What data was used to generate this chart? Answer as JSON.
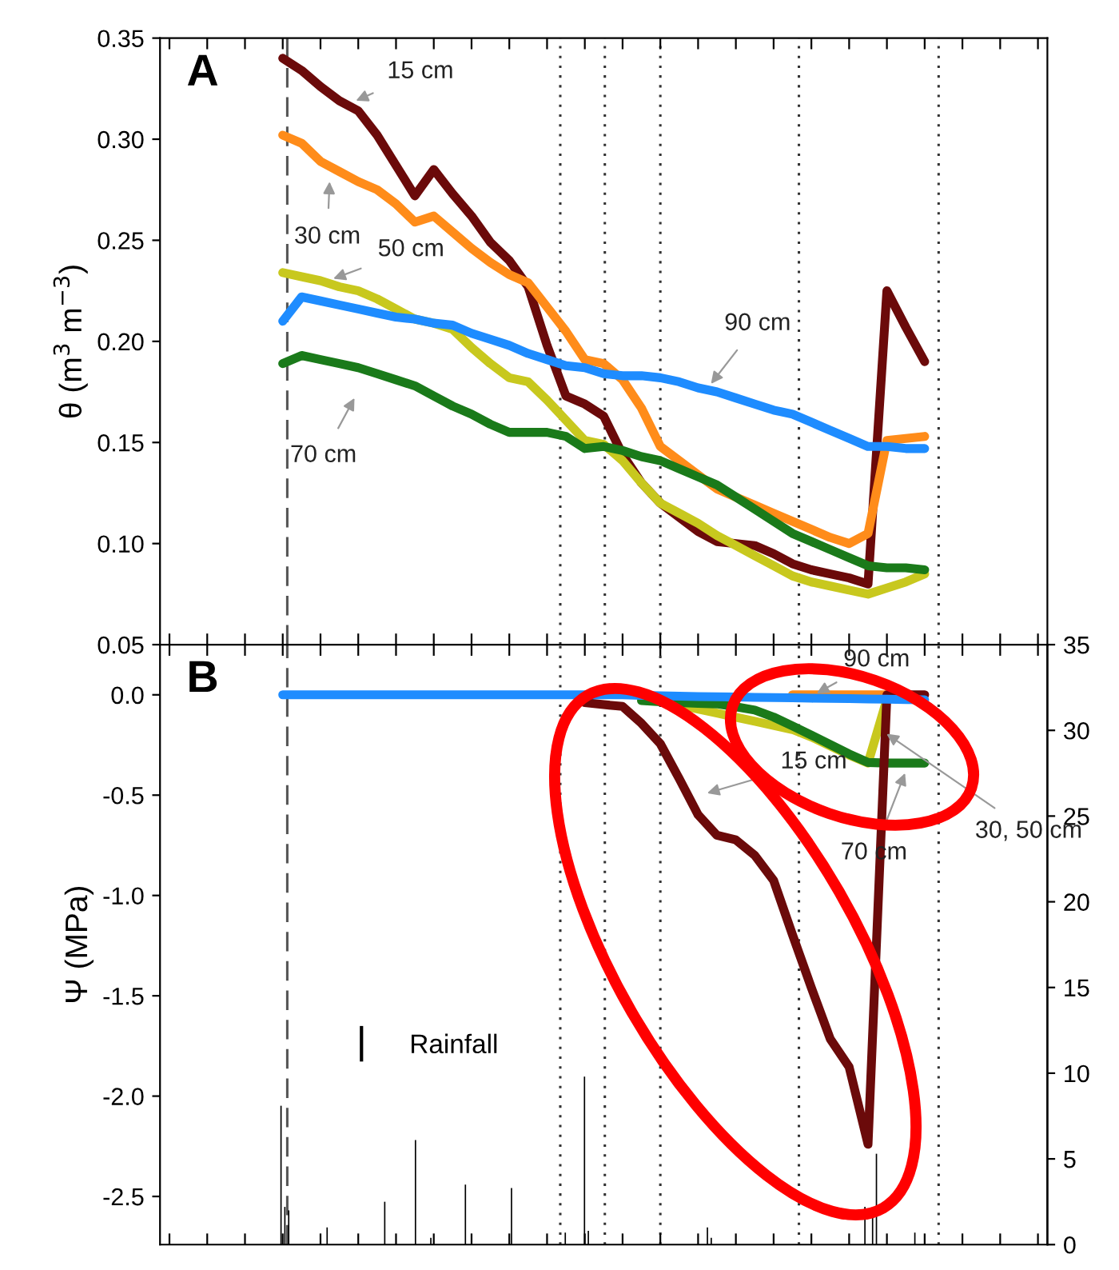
{
  "chart_data": [
    {
      "type": "line",
      "ylabel": "θ (m$^{3}$ m$^{−3}$)",
      "ylim": [
        0.05,
        0.35
      ],
      "tick_labels": "y",
      "marker": "none",
      "line_style": "solid",
      "categories": [
        null,
        null,
        null,
        null,
        null,
        null,
        null,
        null,
        null,
        null,
        null,
        null,
        null,
        null,
        null,
        null,
        null,
        null,
        null,
        null,
        null,
        null,
        null,
        null,
        null,
        null,
        null,
        null,
        null,
        null,
        null,
        null,
        null,
        null,
        null,
        null,
        null,
        null,
        null,
        null,
        null,
        null,
        null,
        null,
        null,
        null,
        null
      ],
      "yticks": [
        {
          "value": 0.05,
          "label": "0.05"
        },
        {
          "value": 0.1,
          "label": "0.10"
        },
        {
          "value": 0.15,
          "label": "0.15"
        },
        {
          "value": 0.2,
          "label": "0.20"
        },
        {
          "value": 0.25,
          "label": "0.25"
        },
        {
          "value": 0.3,
          "label": "0.30"
        },
        {
          "value": 0.35,
          "label": "0.35"
        }
      ],
      "series": [
        {
          "color": "#6b0a0a",
          "values": [
            null,
            null,
            null,
            null,
            null,
            null,
            0.34,
            0.334,
            0.326,
            0.319,
            0.314,
            0.302,
            0.287,
            0.272,
            0.285,
            0.273,
            0.262,
            0.249,
            0.24,
            0.227,
            0.198,
            0.173,
            0.169,
            0.163,
            0.144,
            0.13,
            0.12,
            0.113,
            0.106,
            0.101,
            0.1,
            0.099,
            0.095,
            0.09,
            0.087,
            0.085,
            0.083,
            0.08,
            0.225,
            0.207,
            0.19,
            null,
            null,
            null,
            null,
            null,
            null
          ]
        },
        {
          "color": "#ff8c1a",
          "values": [
            null,
            null,
            null,
            null,
            null,
            null,
            0.302,
            0.298,
            0.289,
            0.284,
            0.279,
            0.275,
            0.268,
            0.259,
            0.262,
            0.254,
            0.246,
            0.239,
            0.233,
            0.229,
            0.217,
            0.205,
            0.191,
            0.189,
            0.181,
            0.167,
            0.148,
            0.141,
            0.134,
            0.127,
            0.123,
            0.119,
            0.115,
            0.111,
            0.107,
            0.103,
            0.1,
            0.105,
            0.151,
            0.152,
            0.153,
            null,
            null,
            null,
            null,
            null,
            null
          ]
        },
        {
          "color": "#c8c81e",
          "values": [
            null,
            null,
            null,
            null,
            null,
            null,
            0.234,
            0.232,
            0.23,
            0.227,
            0.225,
            0.221,
            0.216,
            0.211,
            0.209,
            0.206,
            0.197,
            0.189,
            0.182,
            0.18,
            0.171,
            0.161,
            0.151,
            0.149,
            0.141,
            0.13,
            0.12,
            0.115,
            0.11,
            0.104,
            0.099,
            0.094,
            0.089,
            0.084,
            0.081,
            0.079,
            0.077,
            0.075,
            0.078,
            0.081,
            0.085,
            null,
            null,
            null,
            null,
            null,
            null
          ]
        },
        {
          "color": "#1a7a1a",
          "values": [
            null,
            null,
            null,
            null,
            null,
            null,
            0.189,
            0.193,
            0.191,
            0.189,
            0.187,
            0.184,
            0.181,
            0.178,
            0.173,
            0.168,
            0.164,
            0.159,
            0.155,
            0.155,
            0.155,
            0.153,
            0.147,
            0.148,
            0.146,
            0.143,
            0.141,
            0.137,
            0.133,
            0.129,
            0.123,
            0.117,
            0.111,
            0.105,
            0.101,
            0.097,
            0.093,
            0.089,
            0.088,
            0.088,
            0.087,
            null,
            null,
            null,
            null,
            null,
            null
          ]
        },
        {
          "color": "#1e8cff",
          "values": [
            null,
            null,
            null,
            null,
            null,
            null,
            0.21,
            0.222,
            0.22,
            0.218,
            0.216,
            0.214,
            0.212,
            0.211,
            0.209,
            0.208,
            0.204,
            0.201,
            0.198,
            0.194,
            0.191,
            0.188,
            0.187,
            0.184,
            0.183,
            0.183,
            0.182,
            0.18,
            0.177,
            0.175,
            0.172,
            0.169,
            0.166,
            0.164,
            0.16,
            0.156,
            0.152,
            0.148,
            0.148,
            0.147,
            0.147,
            null,
            null,
            null,
            null,
            null,
            null
          ]
        }
      ],
      "annotations": [
        "A",
        "15 cm",
        "30 cm",
        "50 cm",
        "70 cm",
        "90 cm"
      ]
    },
    {
      "type": "line",
      "ylabel": "Ψ (MPa)",
      "ylim": [
        -2.74,
        0.25
      ],
      "tick_labels": "y",
      "marker": "none",
      "line_style": "solid",
      "categories": [
        null,
        null,
        null,
        null,
        null,
        null,
        null,
        null,
        null,
        null,
        null,
        null,
        null,
        null,
        null,
        null,
        null,
        null,
        null,
        null,
        null,
        null,
        null,
        null,
        null,
        null,
        null,
        null,
        null,
        null,
        null,
        null,
        null,
        null,
        null,
        null,
        null,
        null,
        null,
        null,
        null,
        null,
        null,
        null,
        null,
        null,
        null
      ],
      "yticks": [
        {
          "value": -2.5,
          "label": "-2.5"
        },
        {
          "value": -2.0,
          "label": "-2.0"
        },
        {
          "value": -1.5,
          "label": "-1.5"
        },
        {
          "value": -1.0,
          "label": "-1.0"
        },
        {
          "value": -0.5,
          "label": "-0.5"
        },
        {
          "value": 0.0,
          "label": "0.0"
        }
      ],
      "series": [
        {
          "color": "#ff8c1a",
          "values": [
            null,
            null,
            null,
            null,
            null,
            null,
            null,
            null,
            null,
            null,
            null,
            null,
            null,
            null,
            null,
            null,
            null,
            null,
            null,
            null,
            null,
            null,
            null,
            null,
            null,
            null,
            null,
            null,
            null,
            null,
            null,
            null,
            null,
            0,
            0,
            0,
            0,
            0,
            0,
            null,
            null,
            null,
            null,
            null,
            null,
            null,
            null
          ]
        },
        {
          "color": "#c8c81e",
          "values": [
            null,
            null,
            null,
            null,
            null,
            null,
            null,
            null,
            null,
            null,
            null,
            null,
            null,
            null,
            null,
            null,
            null,
            null,
            null,
            null,
            null,
            null,
            null,
            null,
            null,
            null,
            -0.03,
            -0.05,
            -0.071,
            -0.091,
            -0.112,
            -0.132,
            -0.153,
            -0.173,
            -0.21,
            -0.255,
            -0.3,
            -0.34,
            -0.022,
            null,
            null,
            null,
            null,
            null,
            null,
            null,
            null
          ]
        },
        {
          "color": "#1a7a1a",
          "values": [
            null,
            null,
            null,
            null,
            null,
            null,
            null,
            null,
            null,
            null,
            null,
            null,
            null,
            null,
            null,
            null,
            null,
            null,
            null,
            null,
            null,
            null,
            null,
            null,
            null,
            -0.029,
            -0.035,
            -0.038,
            -0.042,
            -0.045,
            -0.06,
            -0.076,
            -0.111,
            -0.155,
            -0.201,
            -0.248,
            -0.295,
            -0.337,
            -0.34,
            -0.34,
            -0.34,
            null,
            null,
            null,
            null,
            null,
            null
          ]
        },
        {
          "color": "#6b0a0a",
          "values": [
            null,
            null,
            null,
            null,
            null,
            null,
            null,
            null,
            null,
            null,
            null,
            null,
            null,
            null,
            null,
            null,
            null,
            null,
            null,
            null,
            null,
            null,
            -0.039,
            -0.049,
            -0.058,
            -0.142,
            -0.244,
            -0.418,
            -0.598,
            -0.7,
            -0.723,
            -0.8,
            -0.925,
            -1.196,
            -1.46,
            -1.715,
            -1.855,
            -2.24,
            0,
            0,
            0,
            null,
            null,
            null,
            null,
            null,
            null
          ]
        },
        {
          "color": "#1e8cff",
          "values": [
            null,
            null,
            null,
            null,
            null,
            null,
            0,
            0,
            0,
            0,
            0,
            0,
            0,
            0,
            0,
            0,
            0,
            0,
            0,
            0,
            0,
            0,
            0,
            0,
            0,
            -0.003,
            -0.005,
            -0.007,
            -0.009,
            -0.01,
            -0.011,
            -0.013,
            -0.014,
            -0.015,
            -0.017,
            -0.018,
            -0.019,
            -0.021,
            -0.022,
            -0.024,
            -0.025,
            null,
            null,
            null,
            null,
            null,
            null
          ]
        }
      ],
      "annotations": [
        "B",
        "90 cm",
        "30, 50 cm",
        "70 cm",
        "15 cm"
      ]
    },
    {
      "type": "bar",
      "y2lim": [
        0,
        35
      ],
      "y2ticks": [
        0,
        5,
        10,
        15,
        20,
        25,
        30,
        35
      ],
      "tick_labels": "y",
      "legend": "bottom left",
      "categories": [
        null,
        null,
        null,
        null,
        null,
        null,
        null,
        null,
        null,
        null,
        null,
        null,
        null,
        null,
        null,
        null,
        null,
        null,
        null,
        null,
        null,
        null,
        null,
        null,
        null,
        null,
        null,
        null,
        null,
        null,
        null,
        null,
        null,
        null,
        null,
        null,
        null,
        null,
        null,
        null,
        null,
        null,
        null,
        null,
        null,
        null,
        null,
        null,
        null,
        null,
        null,
        null,
        null,
        null,
        null,
        null,
        null,
        null,
        null,
        null,
        null,
        null,
        null,
        null,
        null,
        null,
        null,
        null,
        null,
        null,
        null,
        null,
        null,
        null,
        null,
        null,
        null,
        null,
        null,
        null,
        null,
        null,
        null,
        null,
        null,
        null,
        null,
        null,
        null,
        null,
        null,
        null,
        null,
        null,
        null,
        null,
        null,
        null,
        null,
        null,
        null,
        null,
        null,
        null,
        null,
        null,
        null,
        null,
        null,
        null,
        null,
        null,
        null,
        null,
        null,
        null,
        null,
        null,
        null,
        null,
        null,
        null,
        null,
        null,
        null,
        null,
        null,
        null,
        null,
        null,
        null,
        null,
        null,
        null,
        null,
        null,
        null,
        null,
        null,
        null,
        null,
        null,
        null,
        null,
        null,
        null,
        null,
        null,
        null,
        null,
        null,
        null,
        null,
        null,
        null,
        null,
        null,
        null,
        null,
        null,
        null,
        null,
        null,
        null,
        null,
        null,
        null,
        null,
        null,
        null,
        null,
        null,
        null,
        null,
        null,
        null,
        null,
        null,
        null,
        null,
        null,
        null,
        null,
        null,
        null,
        null,
        null,
        null,
        null,
        null,
        null,
        null,
        null,
        null,
        null,
        null,
        null,
        null,
        null,
        null,
        null,
        null,
        null,
        null,
        null,
        null,
        null,
        null,
        null,
        null,
        null,
        null,
        null,
        null,
        null,
        null,
        null,
        null,
        null,
        null,
        null,
        null,
        null,
        null,
        null,
        null,
        null,
        null,
        null,
        null,
        null
      ],
      "series": [
        {
          "name": "Rainfall",
          "axis": "y2",
          "color": "#000000",
          "values": [
            null,
            null,
            null,
            null,
            null,
            null,
            null,
            null,
            null,
            null,
            null,
            null,
            null,
            null,
            null,
            null,
            null,
            null,
            null,
            null,
            null,
            null,
            null,
            null,
            null,
            null,
            null,
            null,
            null,
            null,
            null,
            8.1,
            2.2,
            2.0,
            null,
            null,
            null,
            null,
            null,
            null,
            null,
            null,
            null,
            1.0,
            null,
            null,
            null,
            null,
            null,
            null,
            null,
            null,
            null,
            null,
            null,
            null,
            null,
            null,
            2.5,
            null,
            null,
            null,
            null,
            null,
            null,
            null,
            6.1,
            null,
            null,
            null,
            0.4,
            null,
            null,
            null,
            null,
            null,
            null,
            null,
            null,
            3.5,
            null,
            null,
            null,
            null,
            null,
            null,
            null,
            null,
            null,
            null,
            null,
            3.3,
            null,
            null,
            null,
            null,
            null,
            null,
            null,
            null,
            null,
            null,
            null,
            null,
            null,
            0.7,
            null,
            null,
            null,
            null,
            9.8,
            0.8,
            null,
            null,
            null,
            null,
            null,
            null,
            null,
            null,
            null,
            null,
            null,
            null,
            null,
            null,
            null,
            null,
            null,
            null,
            null,
            null,
            null,
            null,
            null,
            null,
            null,
            null,
            null,
            null,
            null,
            null,
            1.0,
            0.4,
            null,
            null,
            null,
            null,
            null,
            null,
            null,
            null,
            null,
            null,
            null,
            null,
            null,
            null,
            null,
            null,
            null,
            null,
            null,
            null,
            null,
            null,
            null,
            null,
            null,
            null,
            null,
            null,
            null,
            null,
            null,
            null,
            null,
            null,
            null,
            null,
            null,
            null,
            null,
            2.2,
            null,
            2.2,
            5.3,
            null,
            null,
            null,
            null,
            null,
            null,
            null,
            null,
            null,
            0.7,
            null,
            null,
            null,
            null,
            null,
            null,
            null,
            null,
            null,
            null,
            null,
            null,
            null,
            null,
            null,
            null,
            null,
            null,
            null,
            null,
            null,
            null,
            null,
            null,
            null,
            null,
            null,
            null,
            null,
            null,
            null,
            null,
            null,
            null
          ]
        }
      ]
    }
  ]
}
